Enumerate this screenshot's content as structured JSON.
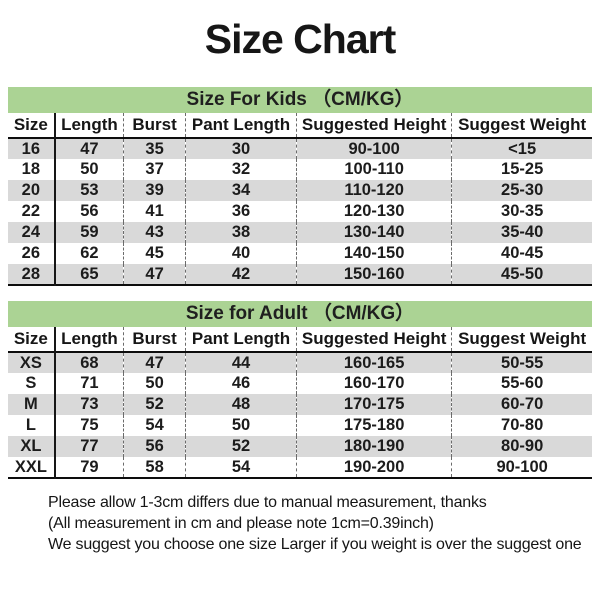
{
  "page": {
    "title": "Size Chart"
  },
  "colors": {
    "header_green": "#abd394",
    "row_alt_gray": "#d9d9d9",
    "text": "#1a1a1a"
  },
  "chart_data": [
    {
      "type": "table",
      "title": "Size For Kids （CM/KG）",
      "columns": [
        "Size",
        "Length",
        "Burst",
        "Pant Length",
        "Suggested Height",
        "Suggest Weight"
      ],
      "rows": [
        [
          "16",
          "47",
          "35",
          "30",
          "90-100",
          "<15"
        ],
        [
          "18",
          "50",
          "37",
          "32",
          "100-110",
          "15-25"
        ],
        [
          "20",
          "53",
          "39",
          "34",
          "110-120",
          "25-30"
        ],
        [
          "22",
          "56",
          "41",
          "36",
          "120-130",
          "30-35"
        ],
        [
          "24",
          "59",
          "43",
          "38",
          "130-140",
          "35-40"
        ],
        [
          "26",
          "62",
          "45",
          "40",
          "140-150",
          "40-45"
        ],
        [
          "28",
          "65",
          "47",
          "42",
          "150-160",
          "45-50"
        ]
      ]
    },
    {
      "type": "table",
      "title": "Size for Adult （CM/KG）",
      "columns": [
        "Size",
        "Length",
        "Burst",
        "Pant Length",
        "Suggested Height",
        "Suggest Weight"
      ],
      "rows": [
        [
          "XS",
          "68",
          "47",
          "44",
          "160-165",
          "50-55"
        ],
        [
          "S",
          "71",
          "50",
          "46",
          "160-170",
          "55-60"
        ],
        [
          "M",
          "73",
          "52",
          "48",
          "170-175",
          "60-70"
        ],
        [
          "L",
          "75",
          "54",
          "50",
          "175-180",
          "70-80"
        ],
        [
          "XL",
          "77",
          "56",
          "52",
          "180-190",
          "80-90"
        ],
        [
          "XXL",
          "79",
          "58",
          "54",
          "190-200",
          "90-100"
        ]
      ]
    }
  ],
  "footer": {
    "lines": [
      "Please allow 1-3cm differs due to manual measurement, thanks",
      "(All measurement in cm and please note 1cm=0.39inch)",
      "We suggest you choose one size Larger if you weight is over the suggest one"
    ]
  }
}
